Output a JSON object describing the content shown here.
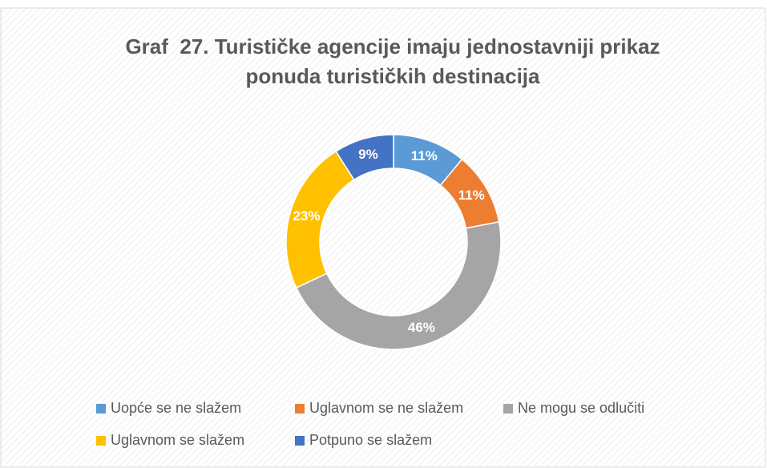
{
  "chart_data": {
    "type": "donut",
    "title": [
      "Graf  27. Turističke agencije imaju jednostavniji prikaz",
      "ponuda turističkih destinacija"
    ],
    "categories": [
      "Uopće se ne slažem",
      "Uglavnom se ne slažem",
      "Ne mogu se odlučiti",
      "Uglavnom se slažem",
      "Potpuno se slažem"
    ],
    "values": [
      11,
      11,
      46,
      23,
      9
    ],
    "value_labels": [
      "11%",
      "11%",
      "46%",
      "23%",
      "9%"
    ],
    "colors": [
      "#5b9bd5",
      "#ed7d31",
      "#a5a5a5",
      "#ffc000",
      "#4472c4"
    ],
    "legend": "bottom"
  }
}
